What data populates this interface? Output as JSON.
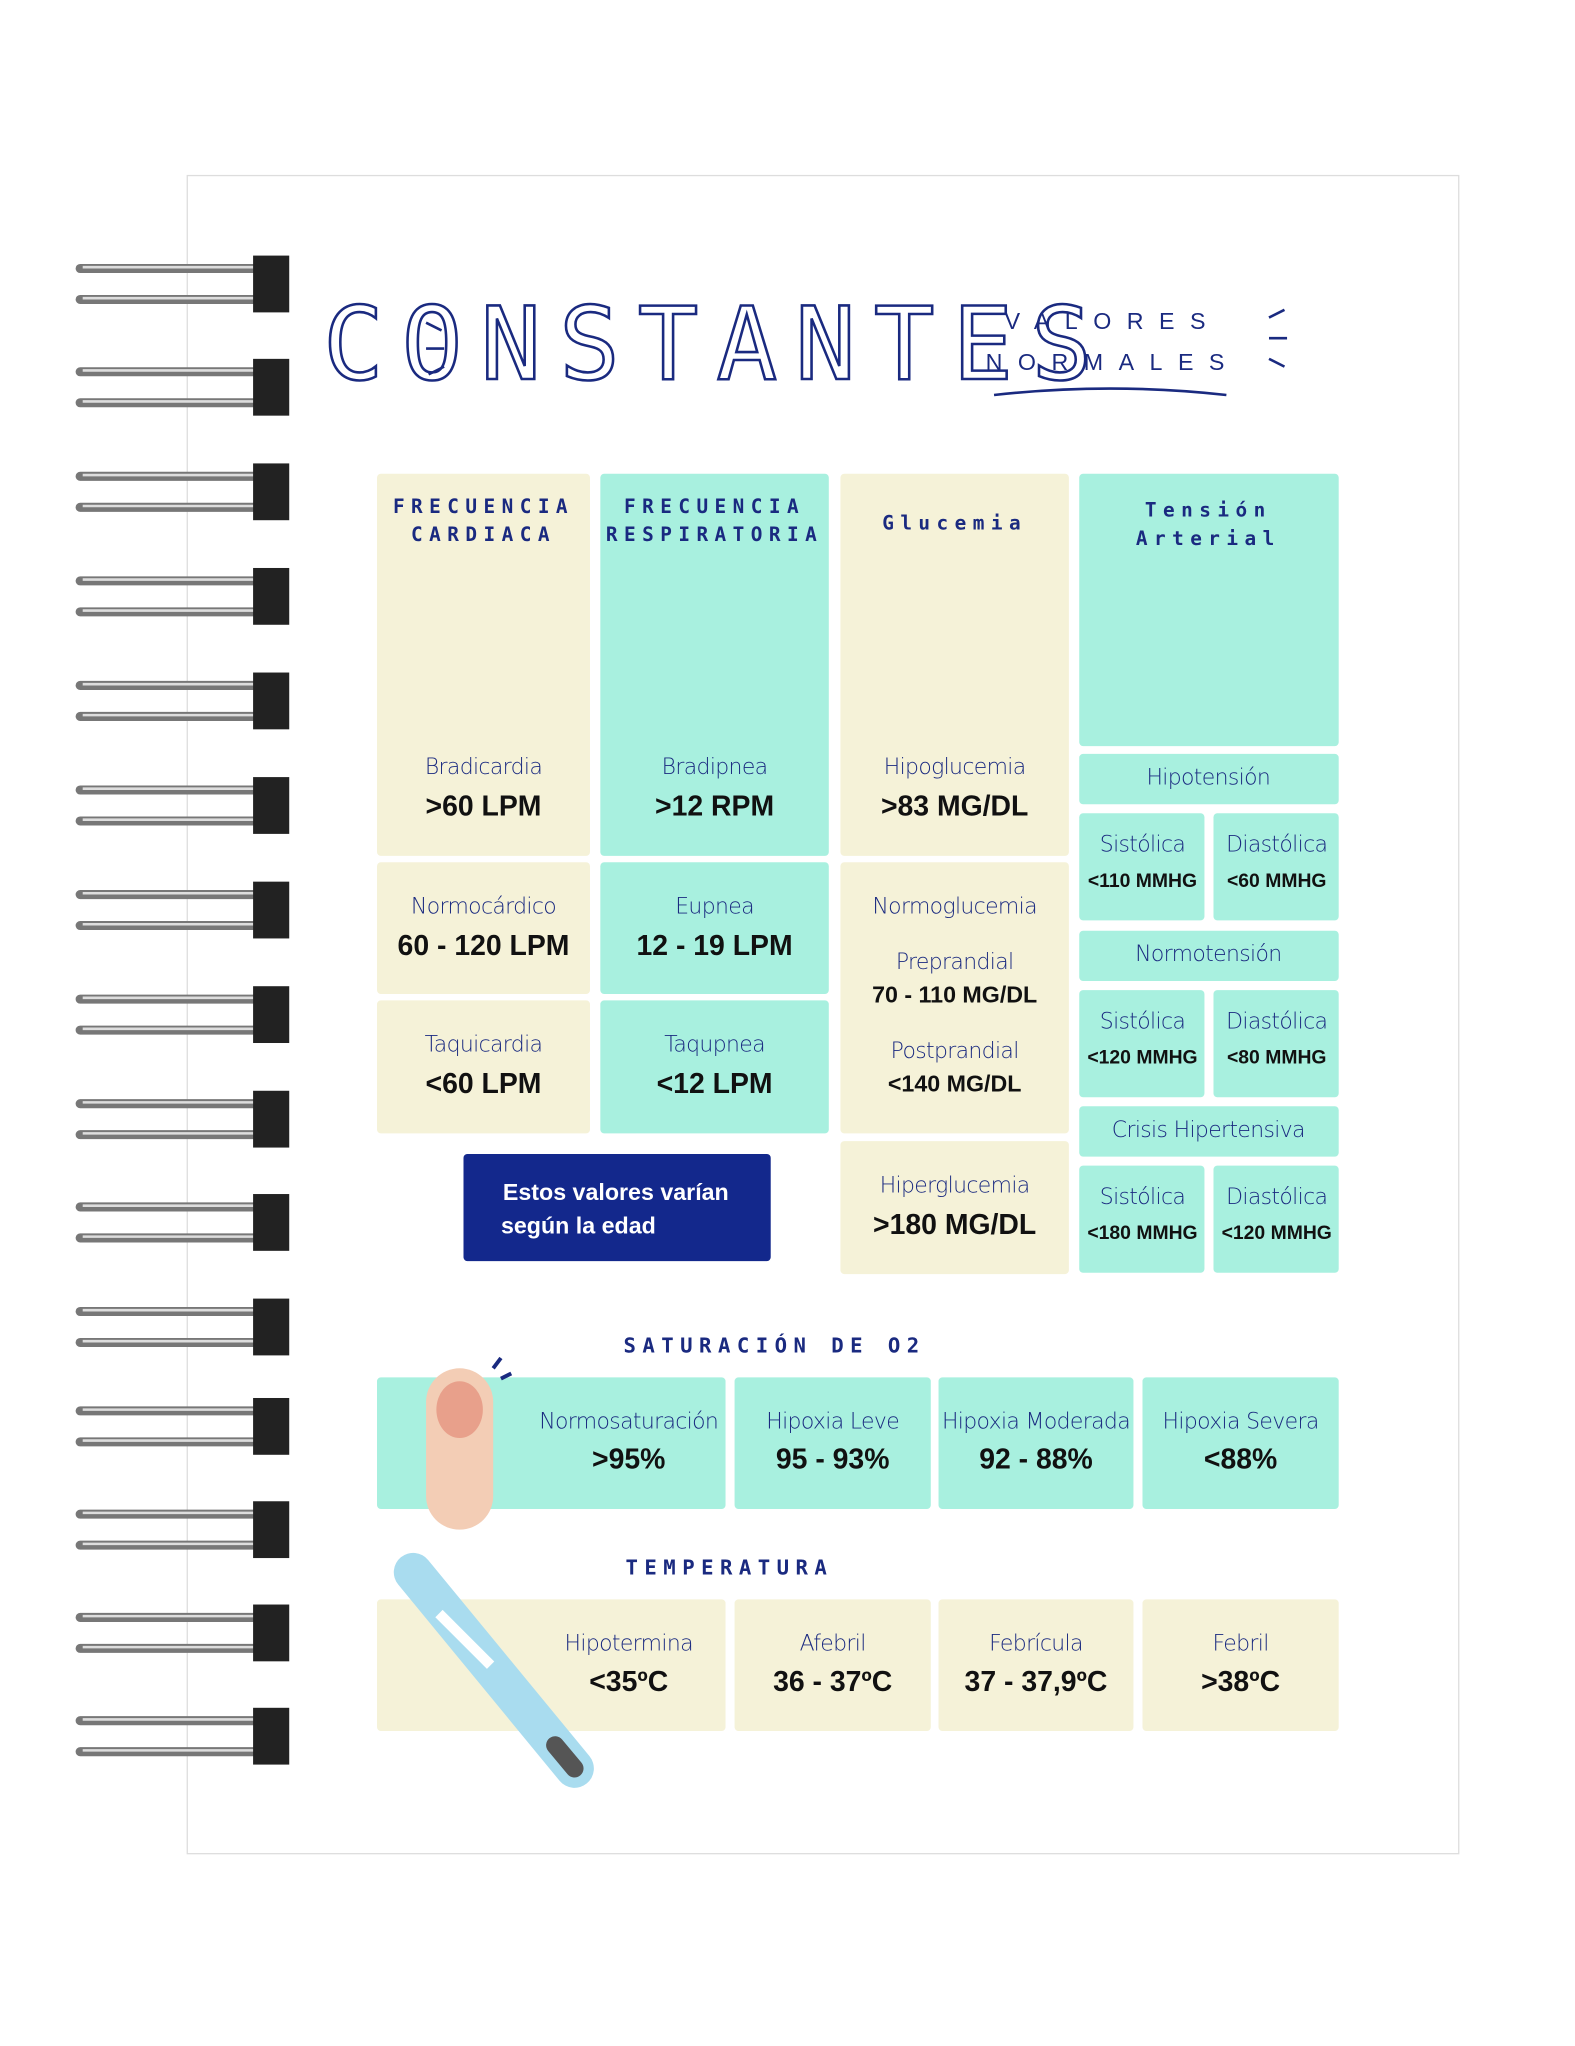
{
  "header": {
    "title": "CONSTANTES",
    "subtitle": [
      "VALORES",
      "NORMALES"
    ]
  },
  "columns": [
    {
      "title": [
        "FRECUENCIA",
        "CARDIACA"
      ],
      "items": [
        {
          "label": "Bradicardia",
          "value": ">60 LPM"
        },
        {
          "label": "Normocárdico",
          "value": "60 - 120 LPM"
        },
        {
          "label": "Taquicardia",
          "value": "<60  LPM"
        }
      ]
    },
    {
      "title": [
        "FRECUENCIA",
        "RESPIRATORIA"
      ],
      "items": [
        {
          "label": "Bradipnea",
          "value": ">12 RPM"
        },
        {
          "label": "Eupnea",
          "value": "12 - 19 LPM"
        },
        {
          "label": "Taqupnea",
          "value": "<12  LPM"
        }
      ]
    },
    {
      "title": [
        "Glucemia"
      ],
      "items": [
        {
          "label": "Hipoglucemia",
          "value": ">83 MG/DL"
        },
        {
          "label": "Normoglucemia",
          "sub": [
            {
              "label": "Preprandial",
              "value": "70 - 110 MG/DL"
            },
            {
              "label": "Postprandial",
              "value": "<140 MG/DL"
            }
          ]
        },
        {
          "label": "Hiperglucemia",
          "value": ">180 MG/DL"
        }
      ]
    },
    {
      "title": [
        "Tensión",
        "Arterial"
      ],
      "groups": [
        {
          "label": "Hipotensión",
          "items": [
            {
              "label": "Sistólica",
              "value": "<110 MMHG"
            },
            {
              "label": "Diastólica",
              "value": "<60 MMHG"
            }
          ]
        },
        {
          "label": "Normotensión",
          "items": [
            {
              "label": "Sistólica",
              "value": "<120 MMHG"
            },
            {
              "label": "Diastólica",
              "value": "<80 MMHG"
            }
          ]
        },
        {
          "label": "Crisis Hipertensiva",
          "items": [
            {
              "label": "Sistólica",
              "value": "<180 MMHG"
            },
            {
              "label": "Diastólica",
              "value": "<120 MMHG"
            }
          ]
        }
      ]
    }
  ],
  "note": [
    "Estos valores varían",
    "según la edad"
  ],
  "saturation": {
    "title": "SATURACIÓN DE O2",
    "items": [
      {
        "label": "Normosaturación",
        "value": ">95%"
      },
      {
        "label": "Hipoxia Leve",
        "value": "95 - 93%"
      },
      {
        "label": "Hipoxia Moderada",
        "value": "92 - 88%"
      },
      {
        "label": "Hipoxia Severa",
        "value": "<88%"
      }
    ]
  },
  "temperature": {
    "title": "TEMPERATURA",
    "items": [
      {
        "label": "Hipotermina",
        "value": "<35ºC"
      },
      {
        "label": "Afebril",
        "value": "36 - 37ºC"
      },
      {
        "label": "Febrícula",
        "value": "37 - 37,9ºC"
      },
      {
        "label": "Febril",
        "value": ">38ºC"
      }
    ]
  }
}
